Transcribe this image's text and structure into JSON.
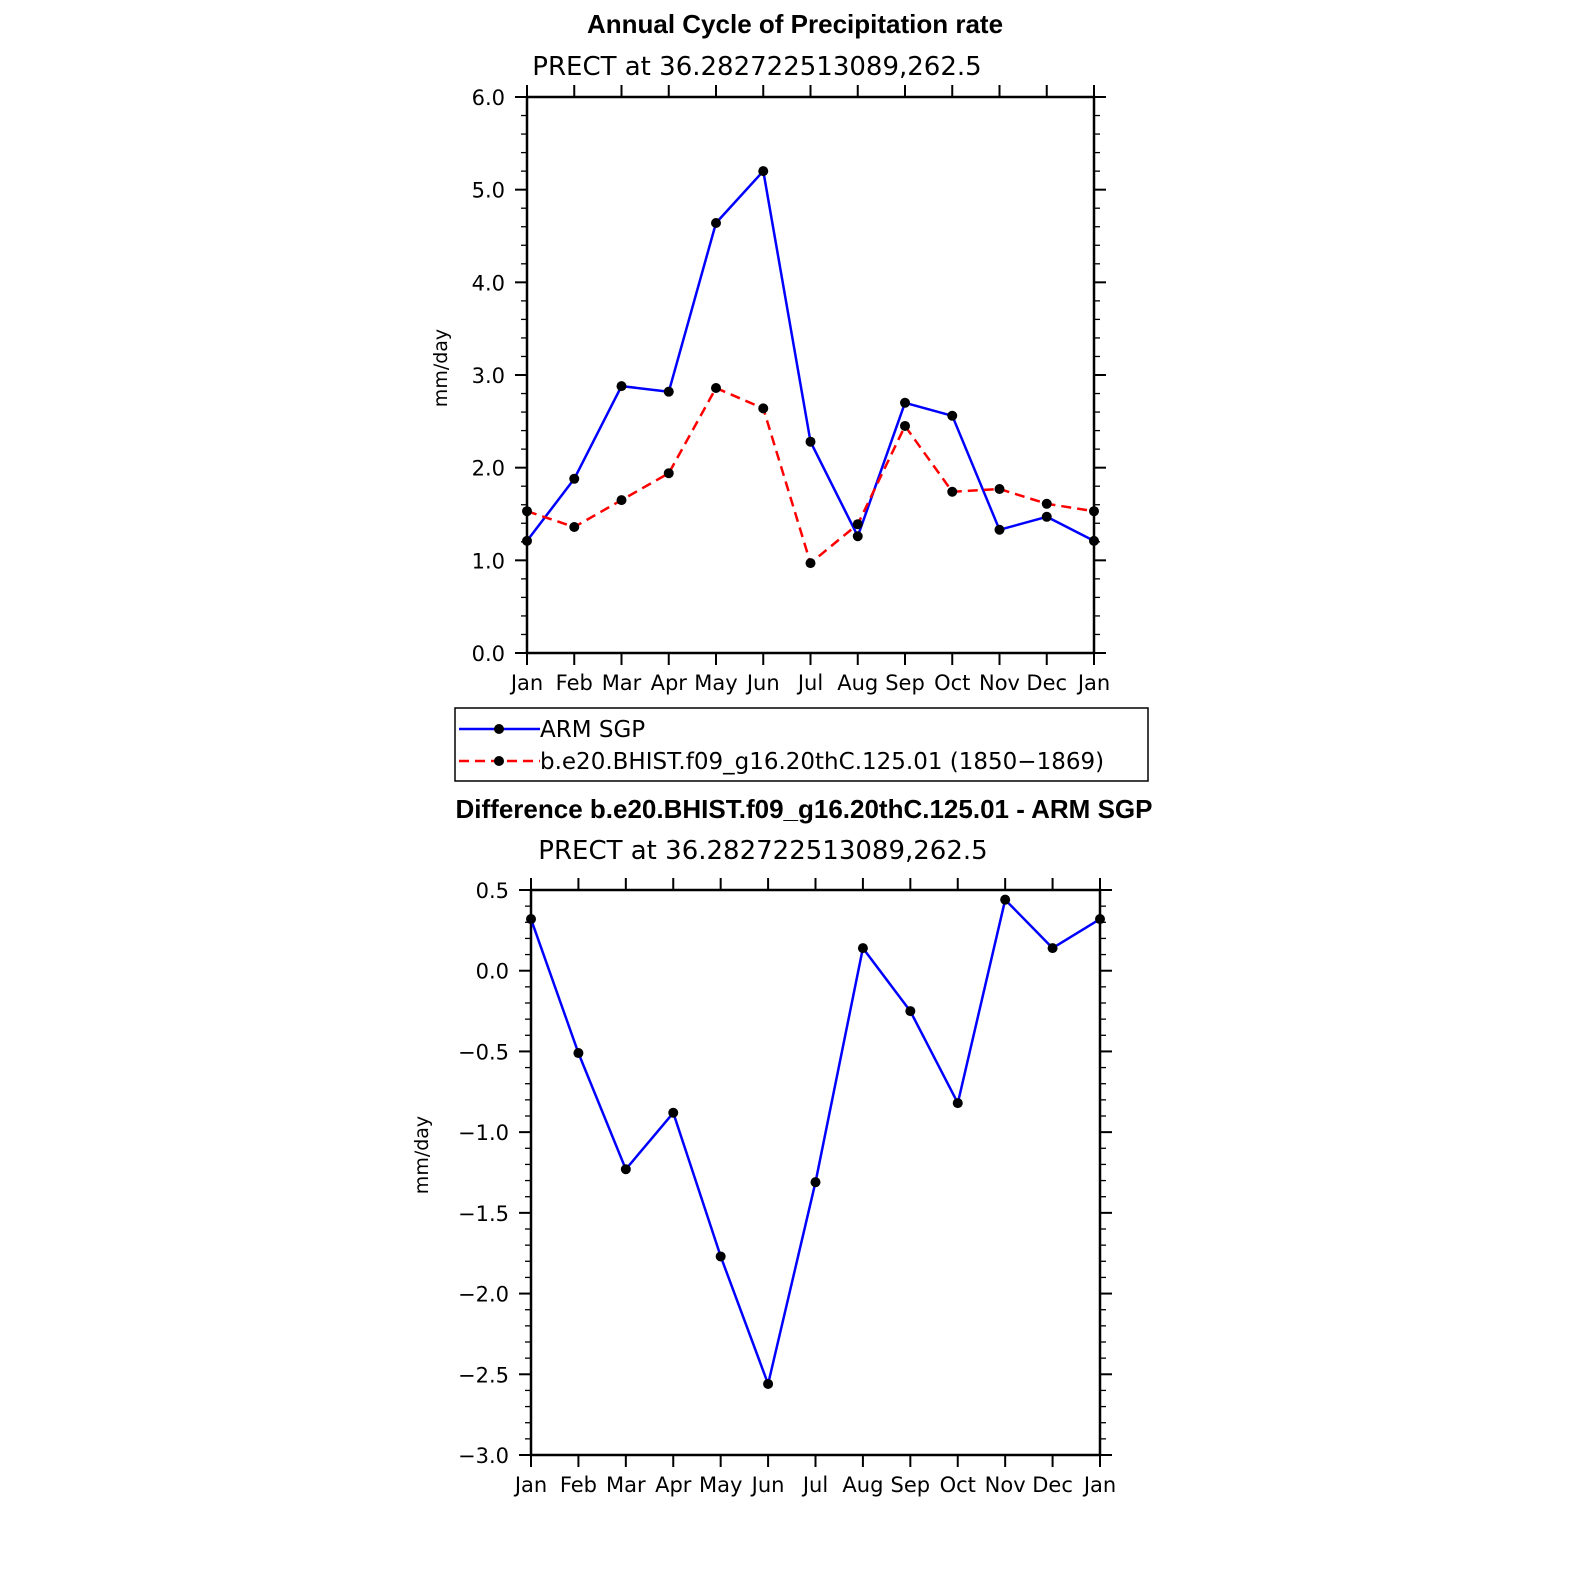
{
  "colors": {
    "obs": "#0000ff",
    "model": "#ff0000",
    "marker": "#000000"
  },
  "chart_data": [
    {
      "type": "line",
      "title": "Annual Cycle of Precipitation rate",
      "subtitle": "PRECT at 36.282722513089,262.5",
      "ylabel": "mm/day",
      "categories": [
        "Jan",
        "Feb",
        "Mar",
        "Apr",
        "May",
        "Jun",
        "Jul",
        "Aug",
        "Sep",
        "Oct",
        "Nov",
        "Dec",
        "Jan"
      ],
      "ylim": [
        0.0,
        6.0
      ],
      "yticks": [
        "0.0",
        "1.0",
        "2.0",
        "3.0",
        "4.0",
        "5.0",
        "6.0"
      ],
      "series": [
        {
          "name": "ARM SGP",
          "style": "solid",
          "color": "#0000ff",
          "values": [
            1.21,
            1.88,
            2.88,
            2.82,
            4.64,
            5.2,
            2.28,
            1.26,
            2.7,
            2.56,
            1.33,
            1.47,
            1.21
          ]
        },
        {
          "name": "b.e20.BHIST.f09_g16.20thC.125.01 (1850−1869)",
          "style": "dashed",
          "color": "#ff0000",
          "values": [
            1.53,
            1.36,
            1.65,
            1.94,
            2.86,
            2.64,
            0.97,
            1.39,
            2.45,
            1.74,
            1.77,
            1.61,
            1.53
          ]
        }
      ]
    },
    {
      "type": "line",
      "title": "Difference b.e20.BHIST.f09_g16.20thC.125.01 - ARM SGP",
      "subtitle": "PRECT at 36.282722513089,262.5",
      "ylabel": "mm/day",
      "categories": [
        "Jan",
        "Feb",
        "Mar",
        "Apr",
        "May",
        "Jun",
        "Jul",
        "Aug",
        "Sep",
        "Oct",
        "Nov",
        "Dec",
        "Jan"
      ],
      "ylim": [
        -3.0,
        0.5
      ],
      "yticks": [
        "−3.0",
        "−2.5",
        "−2.0",
        "−1.5",
        "−1.0",
        "−0.5",
        "0.0",
        "0.5"
      ],
      "series": [
        {
          "name": "Difference",
          "style": "solid",
          "color": "#0000ff",
          "values": [
            0.32,
            -0.51,
            -1.23,
            -0.88,
            -1.77,
            -2.56,
            -1.31,
            0.14,
            -0.25,
            -0.82,
            0.44,
            0.14,
            0.32
          ]
        }
      ]
    }
  ]
}
